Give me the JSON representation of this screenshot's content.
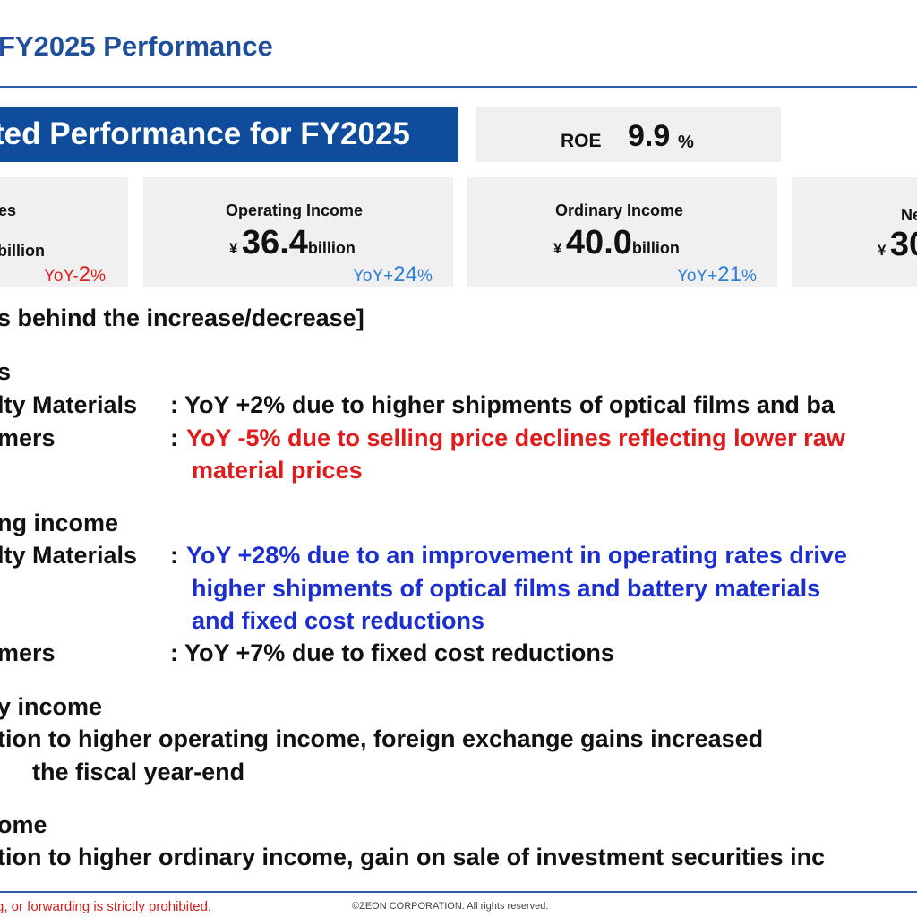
{
  "header": {
    "title": "FY2025 Performance"
  },
  "banner": {
    "text": "ted Performance for FY2025"
  },
  "roe": {
    "label": "ROE",
    "value": "9.9",
    "unit": "%"
  },
  "cards": [
    {
      "label": "es",
      "amount_fragment": "billion",
      "yoy_prefix": "YoY-",
      "yoy_value": "2",
      "yoy_unit": "%"
    },
    {
      "label": "Operating Income",
      "currency": "¥",
      "amount": "36.4",
      "unit": "billion",
      "yoy_prefix": "YoY+",
      "yoy_value": "24",
      "yoy_unit": "%"
    },
    {
      "label": "Ordinary Income",
      "currency": "¥",
      "amount": "40.0",
      "unit": "billion",
      "yoy_prefix": "YoY+",
      "yoy_value": "21",
      "yoy_unit": "%"
    },
    {
      "label": "Ne",
      "currency": "¥",
      "amount_fragment": "30"
    }
  ],
  "body": {
    "reasons_heading": "s behind the increase/decrease]",
    "sales_heading": "s",
    "sales_sm_label": "lty Materials",
    "sales_sm_text": ": YoY +2% due to higher shipments of optical films and ba",
    "sales_el_label": "mers",
    "sales_el_colon": ":",
    "sales_el_text": "YoY -5% due to selling price declines reflecting lower raw",
    "sales_el_text2": "material prices",
    "op_heading": "ng income",
    "op_sm_label": "lty Materials",
    "op_sm_colon": ":",
    "op_sm_text": "YoY +28% due to an improvement in operating rates drive",
    "op_sm_text2": "higher shipments of optical films and battery materials",
    "op_sm_text3": "and fixed cost reductions",
    "op_el_label": "mers",
    "op_el_text": ": YoY +7% due to fixed cost reductions",
    "ord_heading": "y income",
    "ord_text": "tion to higher operating income, foreign exchange gains increased",
    "ord_text2": "the fiscal year-end",
    "net_heading": "ome",
    "net_text": "tion to higher ordinary income, gain on sale of investment securities inc"
  },
  "footer": {
    "notice": "g, or forwarding is strictly prohibited.",
    "copyright": "©ZEON CORPORATION. All rights reserved."
  }
}
